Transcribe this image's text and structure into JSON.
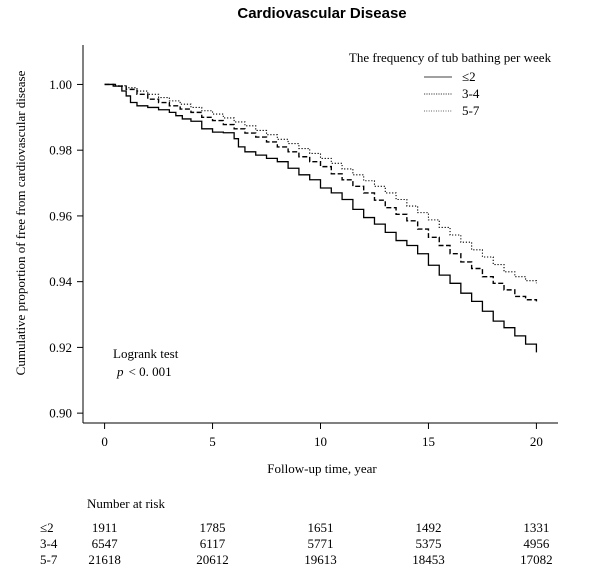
{
  "chart_data": {
    "type": "line",
    "title": "Cardiovascular Disease",
    "xlabel": "Follow-up time, year",
    "ylabel": "Cumulative proportion of free from cardiovascular disease",
    "xlim": [
      -1,
      21
    ],
    "ylim": [
      0.897,
      1.012
    ],
    "x_ticks": [
      0,
      5,
      10,
      15,
      20
    ],
    "x_tick_labels": [
      "0",
      "5",
      "10",
      "15",
      "20"
    ],
    "y_ticks": [
      0.9,
      0.92,
      0.94,
      0.96,
      0.98,
      1.0
    ],
    "y_tick_labels": [
      "0.90",
      "0.92",
      "0.94",
      "0.96",
      "0.98",
      "1.00"
    ],
    "legend": {
      "title": "The frequency of tub bathing per week",
      "position": "top-right",
      "entries": [
        "≤2",
        "3-4",
        "5-7"
      ]
    },
    "annotation": {
      "line1": "Logrank test",
      "p_label": "p",
      "p_rest": "< 0. 001"
    },
    "series": [
      {
        "name": "≤2",
        "style": "solid",
        "points": [
          [
            0,
            1.0
          ],
          [
            0.4,
            0.9995
          ],
          [
            0.8,
            0.998
          ],
          [
            1.0,
            0.9965
          ],
          [
            1.2,
            0.9945
          ],
          [
            1.5,
            0.9935
          ],
          [
            2.0,
            0.993
          ],
          [
            2.5,
            0.9923
          ],
          [
            3.0,
            0.9915
          ],
          [
            3.3,
            0.9905
          ],
          [
            3.6,
            0.9895
          ],
          [
            4.0,
            0.9888
          ],
          [
            4.5,
            0.9865
          ],
          [
            5.0,
            0.9855
          ],
          [
            5.5,
            0.9853
          ],
          [
            6.0,
            0.9835
          ],
          [
            6.2,
            0.981
          ],
          [
            6.5,
            0.9795
          ],
          [
            7.0,
            0.9785
          ],
          [
            7.5,
            0.9775
          ],
          [
            8.0,
            0.9765
          ],
          [
            8.5,
            0.9745
          ],
          [
            9.0,
            0.9725
          ],
          [
            9.5,
            0.971
          ],
          [
            10.0,
            0.9685
          ],
          [
            10.5,
            0.967
          ],
          [
            11.0,
            0.965
          ],
          [
            11.5,
            0.962
          ],
          [
            12.0,
            0.9595
          ],
          [
            12.5,
            0.9575
          ],
          [
            13.0,
            0.955
          ],
          [
            13.5,
            0.9525
          ],
          [
            14.0,
            0.951
          ],
          [
            14.5,
            0.9485
          ],
          [
            15.0,
            0.945
          ],
          [
            15.5,
            0.942
          ],
          [
            16.0,
            0.9395
          ],
          [
            16.5,
            0.9365
          ],
          [
            17.0,
            0.934
          ],
          [
            17.5,
            0.931
          ],
          [
            18.0,
            0.928
          ],
          [
            18.5,
            0.926
          ],
          [
            19.0,
            0.9235
          ],
          [
            19.5,
            0.921
          ],
          [
            20.0,
            0.9185
          ]
        ]
      },
      {
        "name": "3-4",
        "style": "dashed",
        "points": [
          [
            0,
            1.0
          ],
          [
            0.5,
            0.9995
          ],
          [
            1.0,
            0.9985
          ],
          [
            1.5,
            0.997
          ],
          [
            2.0,
            0.9955
          ],
          [
            2.5,
            0.9945
          ],
          [
            3.0,
            0.9935
          ],
          [
            3.5,
            0.9925
          ],
          [
            4.0,
            0.9915
          ],
          [
            4.5,
            0.99
          ],
          [
            5.0,
            0.989
          ],
          [
            5.5,
            0.9878
          ],
          [
            6.0,
            0.9865
          ],
          [
            6.5,
            0.9852
          ],
          [
            7.0,
            0.984
          ],
          [
            7.5,
            0.9825
          ],
          [
            8.0,
            0.981
          ],
          [
            8.5,
            0.9795
          ],
          [
            9.0,
            0.978
          ],
          [
            9.5,
            0.9765
          ],
          [
            10.0,
            0.975
          ],
          [
            10.5,
            0.9728
          ],
          [
            11.0,
            0.971
          ],
          [
            11.5,
            0.969
          ],
          [
            12.0,
            0.967
          ],
          [
            12.5,
            0.9648
          ],
          [
            13.0,
            0.9625
          ],
          [
            13.5,
            0.9605
          ],
          [
            14.0,
            0.9585
          ],
          [
            14.5,
            0.956
          ],
          [
            15.0,
            0.9535
          ],
          [
            15.5,
            0.951
          ],
          [
            16.0,
            0.9485
          ],
          [
            16.5,
            0.946
          ],
          [
            17.0,
            0.944
          ],
          [
            17.5,
            0.9415
          ],
          [
            18.0,
            0.9395
          ],
          [
            18.5,
            0.9375
          ],
          [
            19.0,
            0.9355
          ],
          [
            19.5,
            0.9345
          ],
          [
            20.0,
            0.934
          ]
        ]
      },
      {
        "name": "5-7",
        "style": "dotted",
        "points": [
          [
            0,
            1.0
          ],
          [
            0.5,
            0.9996
          ],
          [
            1.0,
            0.999
          ],
          [
            1.5,
            0.998
          ],
          [
            2.0,
            0.997
          ],
          [
            2.5,
            0.996
          ],
          [
            3.0,
            0.995
          ],
          [
            3.5,
            0.994
          ],
          [
            4.0,
            0.993
          ],
          [
            4.5,
            0.992
          ],
          [
            5.0,
            0.991
          ],
          [
            5.5,
            0.9898
          ],
          [
            6.0,
            0.9886
          ],
          [
            6.5,
            0.9874
          ],
          [
            7.0,
            0.986
          ],
          [
            7.5,
            0.9847
          ],
          [
            8.0,
            0.9833
          ],
          [
            8.5,
            0.982
          ],
          [
            9.0,
            0.9805
          ],
          [
            9.5,
            0.979
          ],
          [
            10.0,
            0.9775
          ],
          [
            10.5,
            0.976
          ],
          [
            11.0,
            0.9743
          ],
          [
            11.5,
            0.9725
          ],
          [
            12.0,
            0.9707
          ],
          [
            12.5,
            0.969
          ],
          [
            13.0,
            0.967
          ],
          [
            13.5,
            0.965
          ],
          [
            14.0,
            0.963
          ],
          [
            14.5,
            0.961
          ],
          [
            15.0,
            0.9588
          ],
          [
            15.5,
            0.9565
          ],
          [
            16.0,
            0.9542
          ],
          [
            16.5,
            0.952
          ],
          [
            17.0,
            0.9497
          ],
          [
            17.5,
            0.9475
          ],
          [
            18.0,
            0.9452
          ],
          [
            18.5,
            0.943
          ],
          [
            19.0,
            0.9415
          ],
          [
            19.5,
            0.9403
          ],
          [
            20.0,
            0.9395
          ]
        ]
      }
    ],
    "risk_table": {
      "title": "Number at risk",
      "timepoints": [
        0,
        5,
        10,
        15,
        20
      ],
      "rows": [
        {
          "label": "≤2",
          "values": [
            "1911",
            "1785",
            "1651",
            "1492",
            "1331"
          ]
        },
        {
          "label": "3-4",
          "values": [
            "6547",
            "6117",
            "5771",
            "5375",
            "4956"
          ]
        },
        {
          "label": "5-7",
          "values": [
            "21618",
            "20612",
            "19613",
            "18453",
            "17082"
          ]
        }
      ]
    }
  }
}
